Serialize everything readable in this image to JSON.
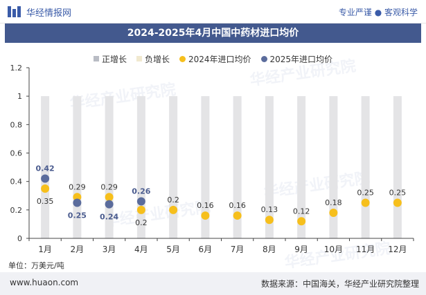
{
  "header": {
    "brand": "华经情报网",
    "tagline": "专业严谨 ● 客观科学",
    "title": "2024-2025年4月中国中药材进口均价"
  },
  "legend": {
    "items": [
      {
        "label": "正增长",
        "color": "#b9bcc4",
        "shape": "square"
      },
      {
        "label": "负增长",
        "color": "#f1e9cf",
        "shape": "square"
      },
      {
        "label": "2024年进口均价",
        "color": "#f6bf1c",
        "shape": "circle"
      },
      {
        "label": "2025年进口均价",
        "color": "#5b6c9c",
        "shape": "circle"
      }
    ]
  },
  "watermark": {
    "text": "华经产业研究院",
    "url": "www.huaon.com"
  },
  "chart_data": {
    "type": "scatter",
    "categories": [
      "1月",
      "2月",
      "3月",
      "4月",
      "5月",
      "6月",
      "7月",
      "8月",
      "9月",
      "10月",
      "11月",
      "12月"
    ],
    "ylim": [
      0,
      1.2
    ],
    "yticks": [
      0,
      0.2,
      0.4,
      0.6,
      0.8,
      1,
      1.2
    ],
    "series": [
      {
        "name": "2024年进口均价",
        "color": "#f6bf1c",
        "values": [
          0.35,
          0.29,
          0.29,
          0.2,
          0.2,
          0.16,
          0.16,
          0.13,
          0.12,
          0.18,
          0.25,
          0.25
        ]
      },
      {
        "name": "2025年进口均价",
        "color": "#5b6c9c",
        "values": [
          0.42,
          0.25,
          0.24,
          0.26,
          null,
          null,
          null,
          null,
          null,
          null,
          null,
          null
        ]
      }
    ],
    "growth_bars": {
      "color": "#e4e4e6",
      "values": [
        1,
        1,
        1,
        1,
        1,
        1,
        1,
        1,
        1,
        1,
        1,
        1
      ]
    }
  },
  "footer": {
    "unit": "单位：万美元/吨",
    "site": "www.huaon.com",
    "source": "数据来源：中国海关，华经产业研究院整理"
  }
}
